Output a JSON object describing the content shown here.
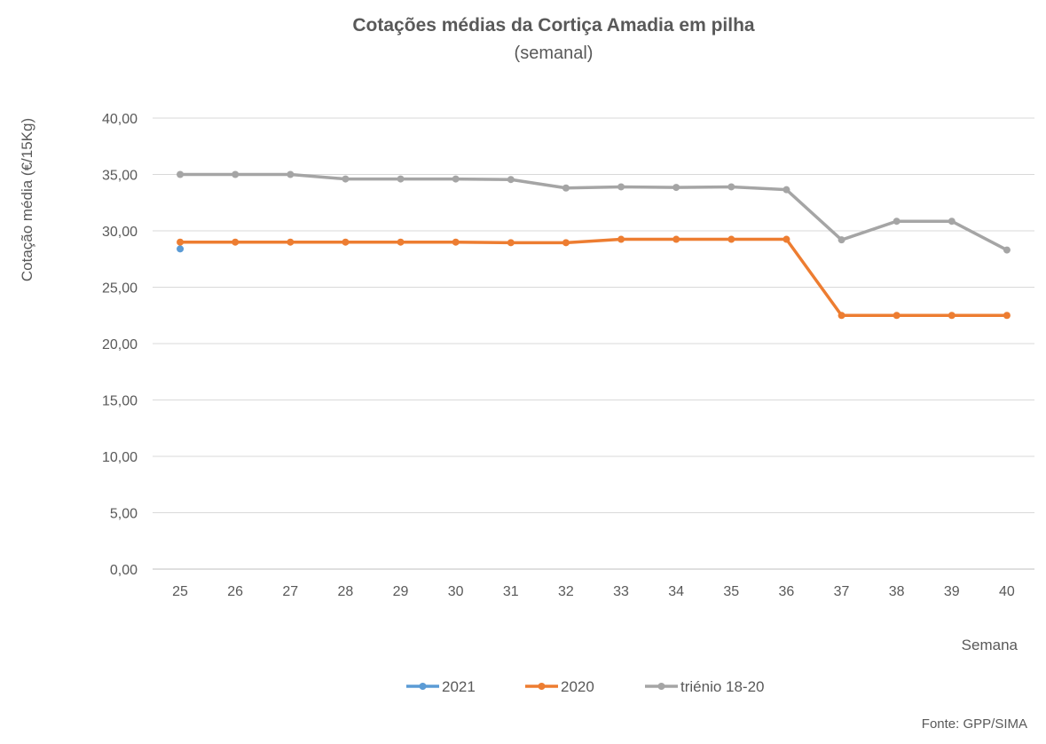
{
  "chart_data": {
    "type": "line",
    "title": "Cotações médias da Cortiça Amadia em pilha",
    "subtitle": "(semanal)",
    "xlabel": "Semana",
    "ylabel": "Cotação média (€/15Kg)",
    "ylim": [
      0,
      40
    ],
    "ytick_step": 5,
    "ytick_labels": [
      "0,00",
      "5,00",
      "10,00",
      "15,00",
      "20,00",
      "25,00",
      "30,00",
      "35,00",
      "40,00"
    ],
    "categories": [
      "25",
      "26",
      "27",
      "28",
      "29",
      "30",
      "31",
      "32",
      "33",
      "34",
      "35",
      "36",
      "37",
      "38",
      "39",
      "40"
    ],
    "grid": true,
    "legend_position": "bottom",
    "series": [
      {
        "name": "2021",
        "color": "#5B9BD5",
        "values": [
          28.4,
          null,
          null,
          null,
          null,
          null,
          null,
          null,
          null,
          null,
          null,
          null,
          null,
          null,
          null,
          null
        ]
      },
      {
        "name": "2020",
        "color": "#ED7D31",
        "values": [
          29.0,
          29.0,
          29.0,
          29.0,
          29.0,
          29.0,
          28.95,
          28.95,
          29.25,
          29.25,
          29.25,
          29.25,
          22.5,
          22.5,
          22.5,
          22.5
        ]
      },
      {
        "name": "triénio 18-20",
        "color": "#A5A5A5",
        "values": [
          35.0,
          35.0,
          35.0,
          34.6,
          34.6,
          34.6,
          34.55,
          33.8,
          33.9,
          33.85,
          33.9,
          33.65,
          29.2,
          30.85,
          30.85,
          28.3
        ]
      }
    ],
    "source": "Fonte: GPP/SIMA"
  }
}
